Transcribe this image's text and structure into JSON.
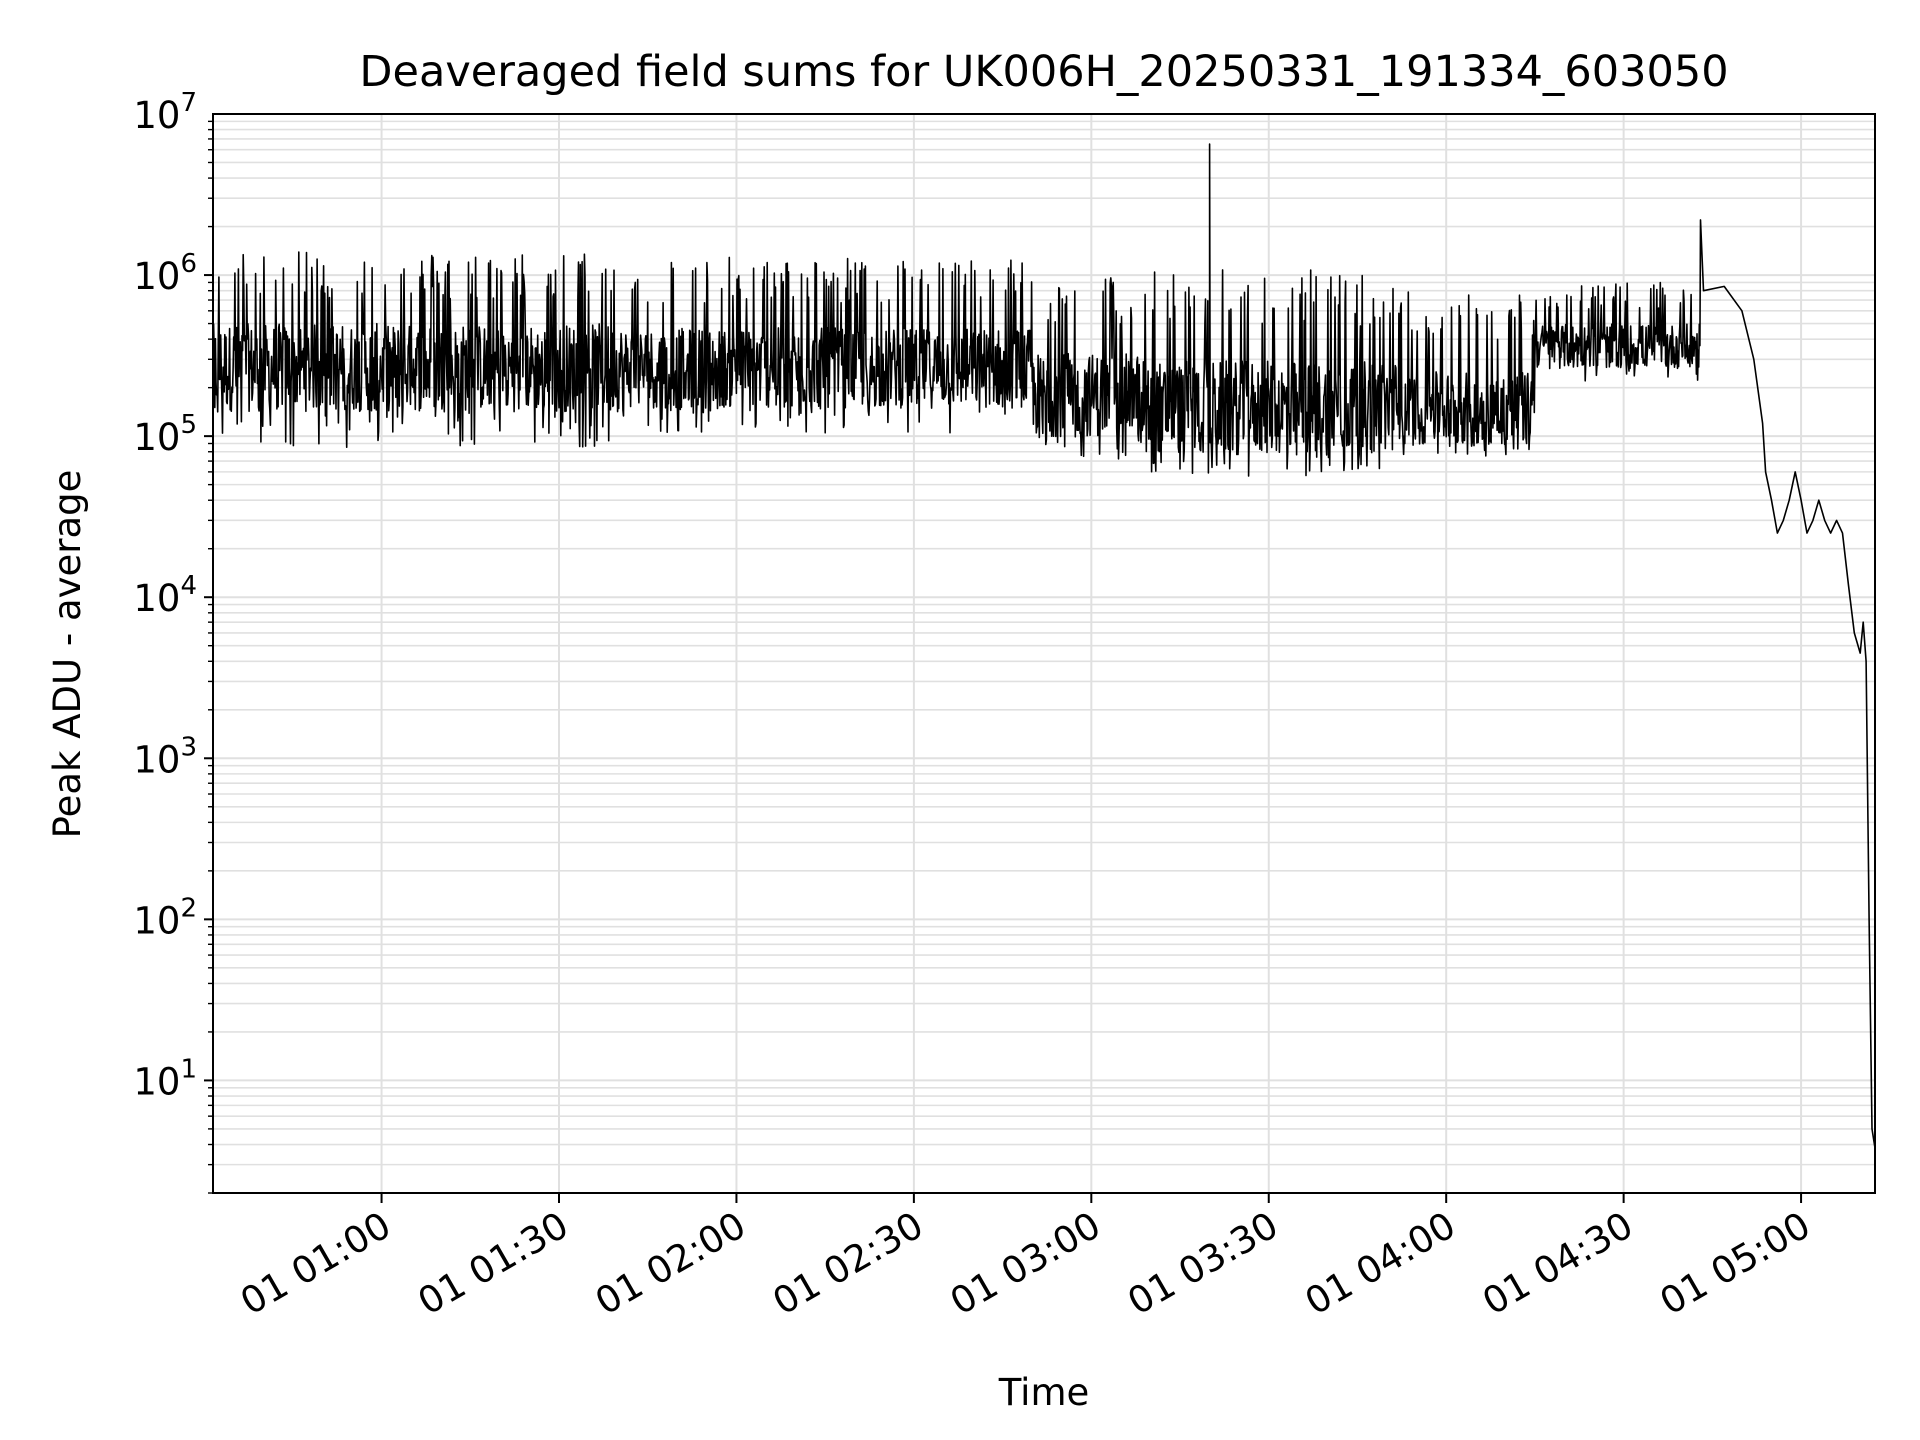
{
  "chart_data": {
    "type": "line",
    "title": "Deaveraged field sums for UK006H_20250331_191334_603050",
    "xlabel": "Time",
    "ylabel": "Peak ADU - average",
    "y_scale": "log",
    "ylim": [
      2,
      10000000
    ],
    "xlim": [
      "01 00:31:30",
      "01 05:12:30"
    ],
    "grid": true,
    "line_color": "#000000",
    "grid_color": "#e0e0e0",
    "x_ticks": [
      {
        "t": "01 01:00",
        "label": "01 01:00"
      },
      {
        "t": "01 01:30",
        "label": "01 01:30"
      },
      {
        "t": "01 02:00",
        "label": "01 02:00"
      },
      {
        "t": "01 02:30",
        "label": "01 02:30"
      },
      {
        "t": "01 03:00",
        "label": "01 03:00"
      },
      {
        "t": "01 03:30",
        "label": "01 03:30"
      },
      {
        "t": "01 04:00",
        "label": "01 04:00"
      },
      {
        "t": "01 04:30",
        "label": "01 04:30"
      },
      {
        "t": "01 05:00",
        "label": "01 05:00"
      }
    ],
    "y_ticks": [
      {
        "v": 10,
        "base": "10",
        "exp": "1"
      },
      {
        "v": 100,
        "base": "10",
        "exp": "2"
      },
      {
        "v": 1000,
        "base": "10",
        "exp": "3"
      },
      {
        "v": 10000,
        "base": "10",
        "exp": "4"
      },
      {
        "v": 100000,
        "base": "10",
        "exp": "5"
      },
      {
        "v": 1000000,
        "base": "10",
        "exp": "6"
      },
      {
        "v": 10000000,
        "base": "10",
        "exp": "7"
      }
    ],
    "series": [
      {
        "style": "noisy-log-band",
        "segments": [
          {
            "t0": "01 00:31:30",
            "t1": "01 01:41:00",
            "median": 250000,
            "low": 85000,
            "high": 1400000
          },
          {
            "t0": "01 01:41:00",
            "t1": "01 02:50:00",
            "median": 250000,
            "low": 100000,
            "high": 1300000
          },
          {
            "t0": "01 02:50:00",
            "t1": "01 03:10:00",
            "median": 170000,
            "low": 70000,
            "high": 1000000
          },
          {
            "t0": "01 03:10:00",
            "t1": "01 03:52:00",
            "median": 140000,
            "low": 55000,
            "high": 1100000
          },
          {
            "t0": "01 03:52:00",
            "t1": "01 04:15:00",
            "median": 140000,
            "low": 75000,
            "high": 800000
          },
          {
            "t0": "01 04:15:00",
            "t1": "01 04:43:00",
            "median": 350000,
            "low": 220000,
            "high": 900000
          }
        ],
        "points": [
          {
            "t": "01 03:20:00",
            "v": 6500000
          },
          {
            "t": "01 04:43:00",
            "v": 2200000
          },
          {
            "t": "01 04:43:30",
            "v": 800000
          },
          {
            "t": "01 04:47:00",
            "v": 850000
          },
          {
            "t": "01 04:50:00",
            "v": 600000
          },
          {
            "t": "01 04:52:00",
            "v": 300000
          },
          {
            "t": "01 04:53:30",
            "v": 120000
          },
          {
            "t": "01 04:54:00",
            "v": 60000
          },
          {
            "t": "01 04:55:00",
            "v": 40000
          },
          {
            "t": "01 04:56:00",
            "v": 25000
          },
          {
            "t": "01 04:57:00",
            "v": 30000
          },
          {
            "t": "01 04:58:00",
            "v": 40000
          },
          {
            "t": "01 04:59:00",
            "v": 60000
          },
          {
            "t": "01 05:00:00",
            "v": 40000
          },
          {
            "t": "01 05:01:00",
            "v": 25000
          },
          {
            "t": "01 05:02:00",
            "v": 30000
          },
          {
            "t": "01 05:03:00",
            "v": 40000
          },
          {
            "t": "01 05:04:00",
            "v": 30000
          },
          {
            "t": "01 05:05:00",
            "v": 25000
          },
          {
            "t": "01 05:06:00",
            "v": 30000
          },
          {
            "t": "01 05:07:00",
            "v": 25000
          },
          {
            "t": "01 05:08:00",
            "v": 12000
          },
          {
            "t": "01 05:09:00",
            "v": 6000
          },
          {
            "t": "01 05:10:00",
            "v": 4500
          },
          {
            "t": "01 05:10:30",
            "v": 7000
          },
          {
            "t": "01 05:11:00",
            "v": 4000
          },
          {
            "t": "01 05:11:30",
            "v": 100
          },
          {
            "t": "01 05:12:00",
            "v": 5
          },
          {
            "t": "01 05:12:30",
            "v": 3.8
          }
        ]
      }
    ]
  }
}
